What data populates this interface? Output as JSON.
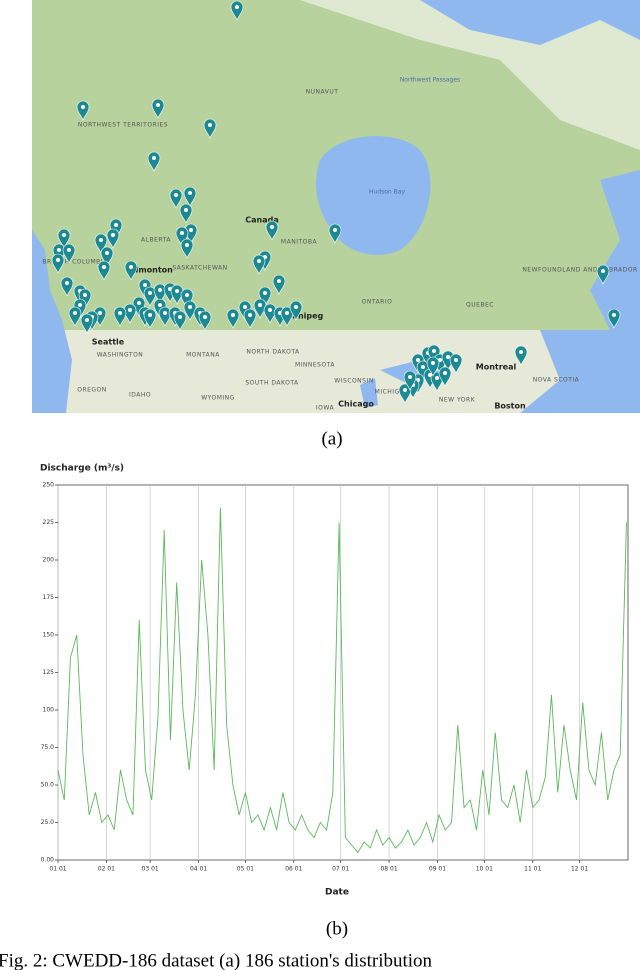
{
  "figure": {
    "panel_a_label": "(a)",
    "panel_b_label": "(b)",
    "caption": "Fig. 2: CWEDD-186 dataset (a) 186 station's distribution",
    "map_labels": [
      "NUNAVUT",
      "Northwest Passages",
      "Hudson Bay",
      "NORTHWEST TERRITORIES",
      "Canada",
      "ALBERTA",
      "BRITISH COLUMBIA",
      "Edmonton",
      "SASKATCHEWAN",
      "MANITOBA",
      "Winnipeg",
      "ONTARIO",
      "QUEBEC",
      "NEWFOUNDLAND AND LABRADOR",
      "Seattle",
      "WASHINGTON",
      "MONTANA",
      "NORTH DAKOTA",
      "MINNESOTA",
      "WISCONSIN",
      "SOUTH DAKOTA",
      "OREGON",
      "IDAHO",
      "WYOMING",
      "IOWA",
      "Chicago",
      "MICHIGAN",
      "Montreal",
      "NOVA SCOTIA",
      "NEW YORK",
      "Boston"
    ]
  },
  "chart_data": {
    "type": "line",
    "y_label": "Discharge (m³/s)",
    "x_label": "Date",
    "color": "#5cb85c",
    "grid": true,
    "xlim": [
      0,
      365
    ],
    "ylim": [
      0,
      250
    ],
    "xticks": [
      {
        "value": 0,
        "label": "01 01"
      },
      {
        "value": 31,
        "label": "02 01"
      },
      {
        "value": 59,
        "label": "03 01"
      },
      {
        "value": 90,
        "label": "04 01"
      },
      {
        "value": 120,
        "label": "05 01"
      },
      {
        "value": 151,
        "label": "06 01"
      },
      {
        "value": 181,
        "label": "07 01"
      },
      {
        "value": 212,
        "label": "08 01"
      },
      {
        "value": 243,
        "label": "09 01"
      },
      {
        "value": 273,
        "label": "10 01"
      },
      {
        "value": 304,
        "label": "11 01"
      },
      {
        "value": 334,
        "label": "12 01"
      }
    ],
    "yticks": [
      {
        "value": 0,
        "label": "0.00"
      },
      {
        "value": 25,
        "label": "25.0"
      },
      {
        "value": 50,
        "label": "50.0"
      },
      {
        "value": 75,
        "label": "75.0"
      },
      100,
      125,
      150,
      175,
      200,
      225,
      250
    ],
    "x": [
      0,
      4,
      8,
      12,
      16,
      20,
      24,
      28,
      32,
      36,
      40,
      44,
      48,
      52,
      56,
      60,
      64,
      68,
      72,
      76,
      80,
      84,
      88,
      92,
      96,
      100,
      104,
      108,
      112,
      116,
      120,
      124,
      128,
      132,
      136,
      140,
      144,
      148,
      152,
      156,
      160,
      164,
      168,
      172,
      176,
      180,
      184,
      188,
      192,
      196,
      200,
      204,
      208,
      212,
      216,
      220,
      224,
      228,
      232,
      236,
      240,
      244,
      248,
      252,
      256,
      260,
      264,
      268,
      272,
      276,
      280,
      284,
      288,
      292,
      296,
      300,
      304,
      308,
      312,
      316,
      320,
      324,
      328,
      332,
      336,
      340,
      344,
      348,
      352,
      356,
      360,
      364
    ],
    "values": [
      60,
      40,
      135,
      150,
      70,
      30,
      45,
      25,
      30,
      20,
      60,
      40,
      30,
      160,
      60,
      40,
      95,
      220,
      80,
      185,
      100,
      60,
      110,
      200,
      150,
      60,
      235,
      90,
      50,
      30,
      45,
      25,
      30,
      20,
      35,
      20,
      45,
      25,
      20,
      30,
      20,
      15,
      25,
      20,
      45,
      225,
      15,
      10,
      5,
      12,
      8,
      20,
      10,
      15,
      8,
      12,
      20,
      10,
      15,
      25,
      12,
      30,
      20,
      25,
      90,
      35,
      40,
      20,
      60,
      30,
      85,
      40,
      35,
      50,
      25,
      60,
      35,
      40,
      55,
      110,
      45,
      90,
      60,
      40,
      105,
      60,
      50,
      85,
      40,
      60,
      70,
      225
    ]
  }
}
